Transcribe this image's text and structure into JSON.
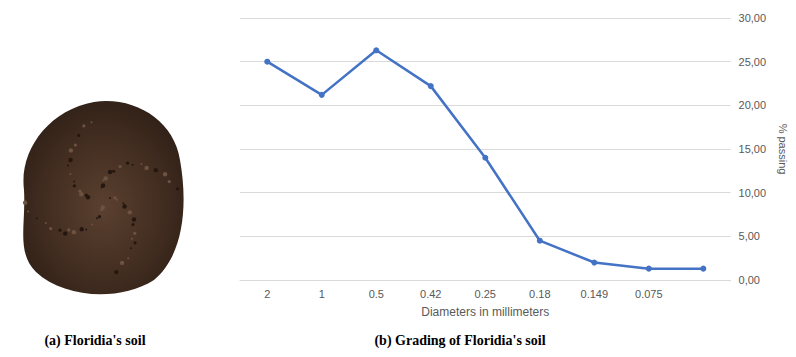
{
  "panel_a": {
    "caption": "(a) Floridia's soil"
  },
  "chart_data": {
    "type": "line",
    "caption": "(b) Grading of Floridia's soil",
    "x_label": "Diameters in millimeters",
    "y_label": "% passing",
    "categories": [
      "2",
      "1",
      "0.5",
      "0.42",
      "0.25",
      "0.18",
      "0.149",
      "0.075",
      null
    ],
    "values": [
      25.0,
      21.2,
      26.3,
      22.2,
      14.0,
      4.5,
      2.0,
      1.3,
      1.3
    ],
    "color": "#4472c4",
    "marker": "circle",
    "line_style": "solid",
    "ylim": [
      0,
      30
    ],
    "yticks": [
      {
        "value": 0,
        "label": "0,00"
      },
      {
        "value": 5,
        "label": "5,00"
      },
      {
        "value": 10,
        "label": "10,00"
      },
      {
        "value": 15,
        "label": "15,00"
      },
      {
        "value": 20,
        "label": "20,00"
      },
      {
        "value": 25,
        "label": "25,00"
      },
      {
        "value": 30,
        "label": "30,00"
      }
    ],
    "grid": true
  }
}
